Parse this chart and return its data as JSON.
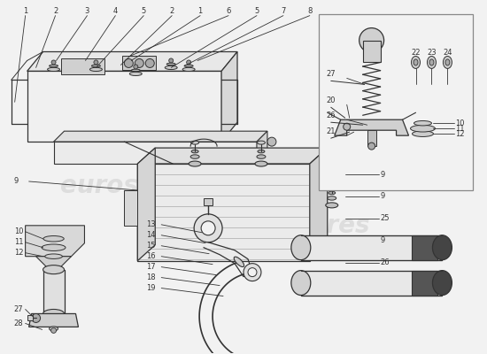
{
  "bg_color": "#f2f2f2",
  "line_color": "#333333",
  "watermark_color": "#cccccc",
  "watermark_text": "eurospares",
  "fig_width": 5.5,
  "fig_height": 4.0,
  "dpi": 100
}
